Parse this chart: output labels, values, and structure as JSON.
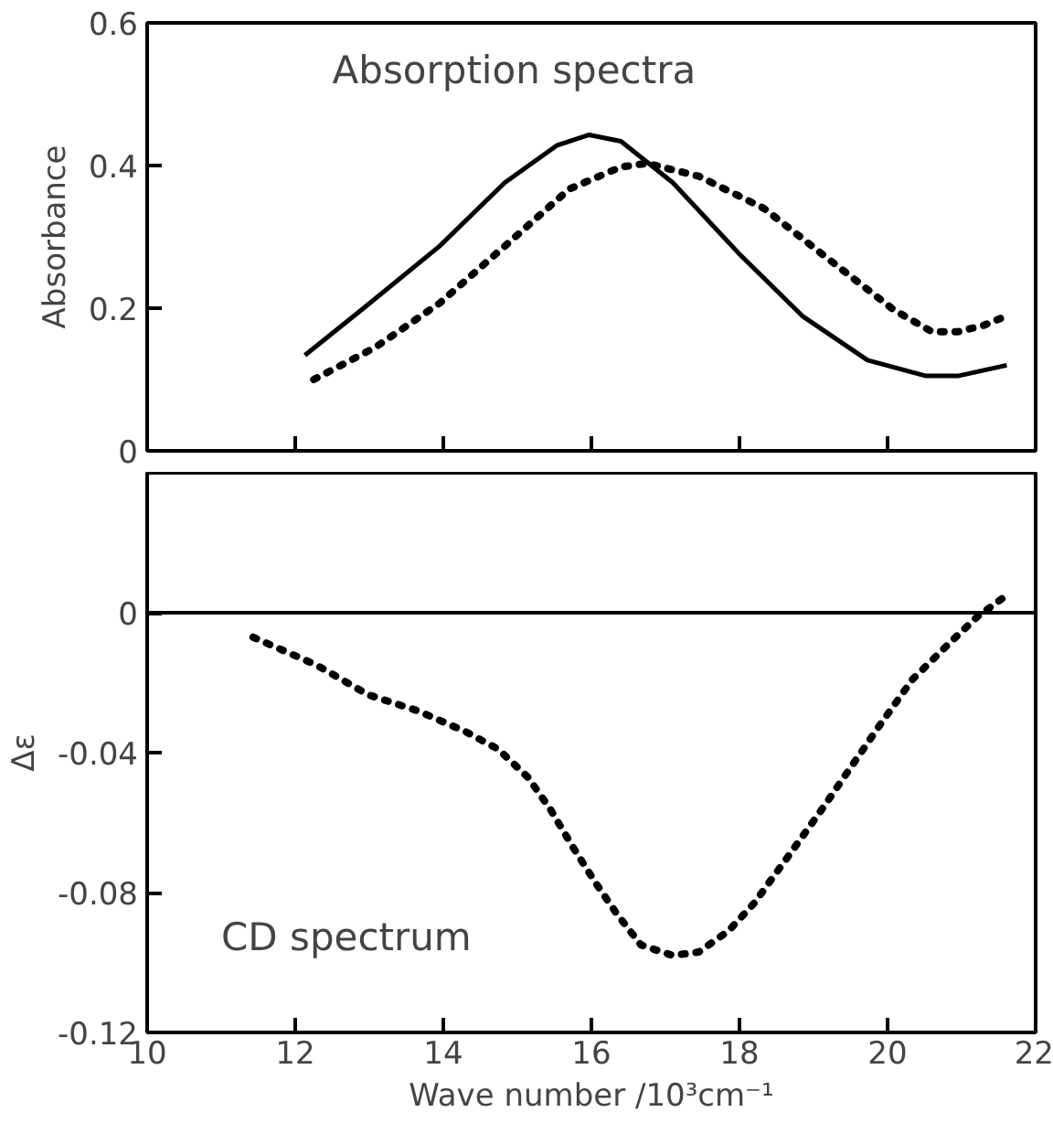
{
  "chart_data": [
    {
      "type": "line",
      "title": "Absorption spectra",
      "ylabel": "Absorbance",
      "xlim": [
        10,
        22
      ],
      "xticks": [
        10,
        12,
        14,
        16,
        18,
        20,
        22
      ],
      "ylim": [
        0,
        0.6
      ],
      "yticks": [
        0,
        0.2,
        0.4,
        0.6
      ],
      "tick_labels": "y",
      "grid": false,
      "marker": "none",
      "series": [
        {
          "color": "#000000",
          "line_style": "solid",
          "x": [
            12.13,
            12.9,
            13.95,
            14.83,
            15.53,
            15.97,
            16.4,
            17.1,
            17.98,
            18.85,
            19.73,
            20.52,
            20.95,
            21.61
          ],
          "values": [
            0.134,
            0.198,
            0.287,
            0.376,
            0.428,
            0.443,
            0.434,
            0.376,
            0.278,
            0.189,
            0.127,
            0.105,
            0.105,
            0.12
          ]
        },
        {
          "color": "#000000",
          "line_style": "dotted",
          "x": [
            12.25,
            13.08,
            13.95,
            14.83,
            15.7,
            16.4,
            16.75,
            17.45,
            18.33,
            19.2,
            20.08,
            20.6,
            20.95,
            21.3,
            21.65
          ],
          "values": [
            0.1,
            0.145,
            0.207,
            0.287,
            0.367,
            0.398,
            0.403,
            0.385,
            0.34,
            0.269,
            0.198,
            0.167,
            0.167,
            0.176,
            0.191
          ]
        }
      ]
    },
    {
      "type": "line",
      "title": "CD spectrum",
      "xlabel": "Wave number /10³cm⁻¹",
      "ylabel": "Δε",
      "xlim": [
        10,
        22
      ],
      "xticks": [
        10,
        12,
        14,
        16,
        18,
        20,
        22
      ],
      "ylim": [
        -0.12,
        0.04
      ],
      "yticks": [
        {
          "value": -0.12,
          "label": "-0.12"
        },
        {
          "value": -0.08,
          "label": "-0.08"
        },
        {
          "value": -0.04,
          "label": "-0.04"
        },
        0
      ],
      "grid": false,
      "marker": "none",
      "ref_lines": [
        {
          "axis": "y",
          "value": 0,
          "color": "#000000"
        }
      ],
      "series": [
        {
          "color": "#000000",
          "line_style": "dotted",
          "x": [
            11.43,
            12.29,
            12.99,
            13.65,
            14.3,
            14.74,
            15.14,
            15.44,
            15.75,
            16.05,
            16.34,
            16.67,
            17.1,
            17.45,
            17.85,
            18.2,
            18.68,
            19.12,
            19.51,
            19.9,
            20.34,
            20.87,
            21.22,
            21.61
          ],
          "values": [
            -0.007,
            -0.015,
            -0.0235,
            -0.028,
            -0.034,
            -0.039,
            -0.047,
            -0.056,
            -0.067,
            -0.077,
            -0.086,
            -0.095,
            -0.098,
            -0.097,
            -0.091,
            -0.083,
            -0.069,
            -0.056,
            -0.044,
            -0.032,
            -0.019,
            -0.008,
            -0.001,
            0.005
          ]
        }
      ]
    }
  ]
}
